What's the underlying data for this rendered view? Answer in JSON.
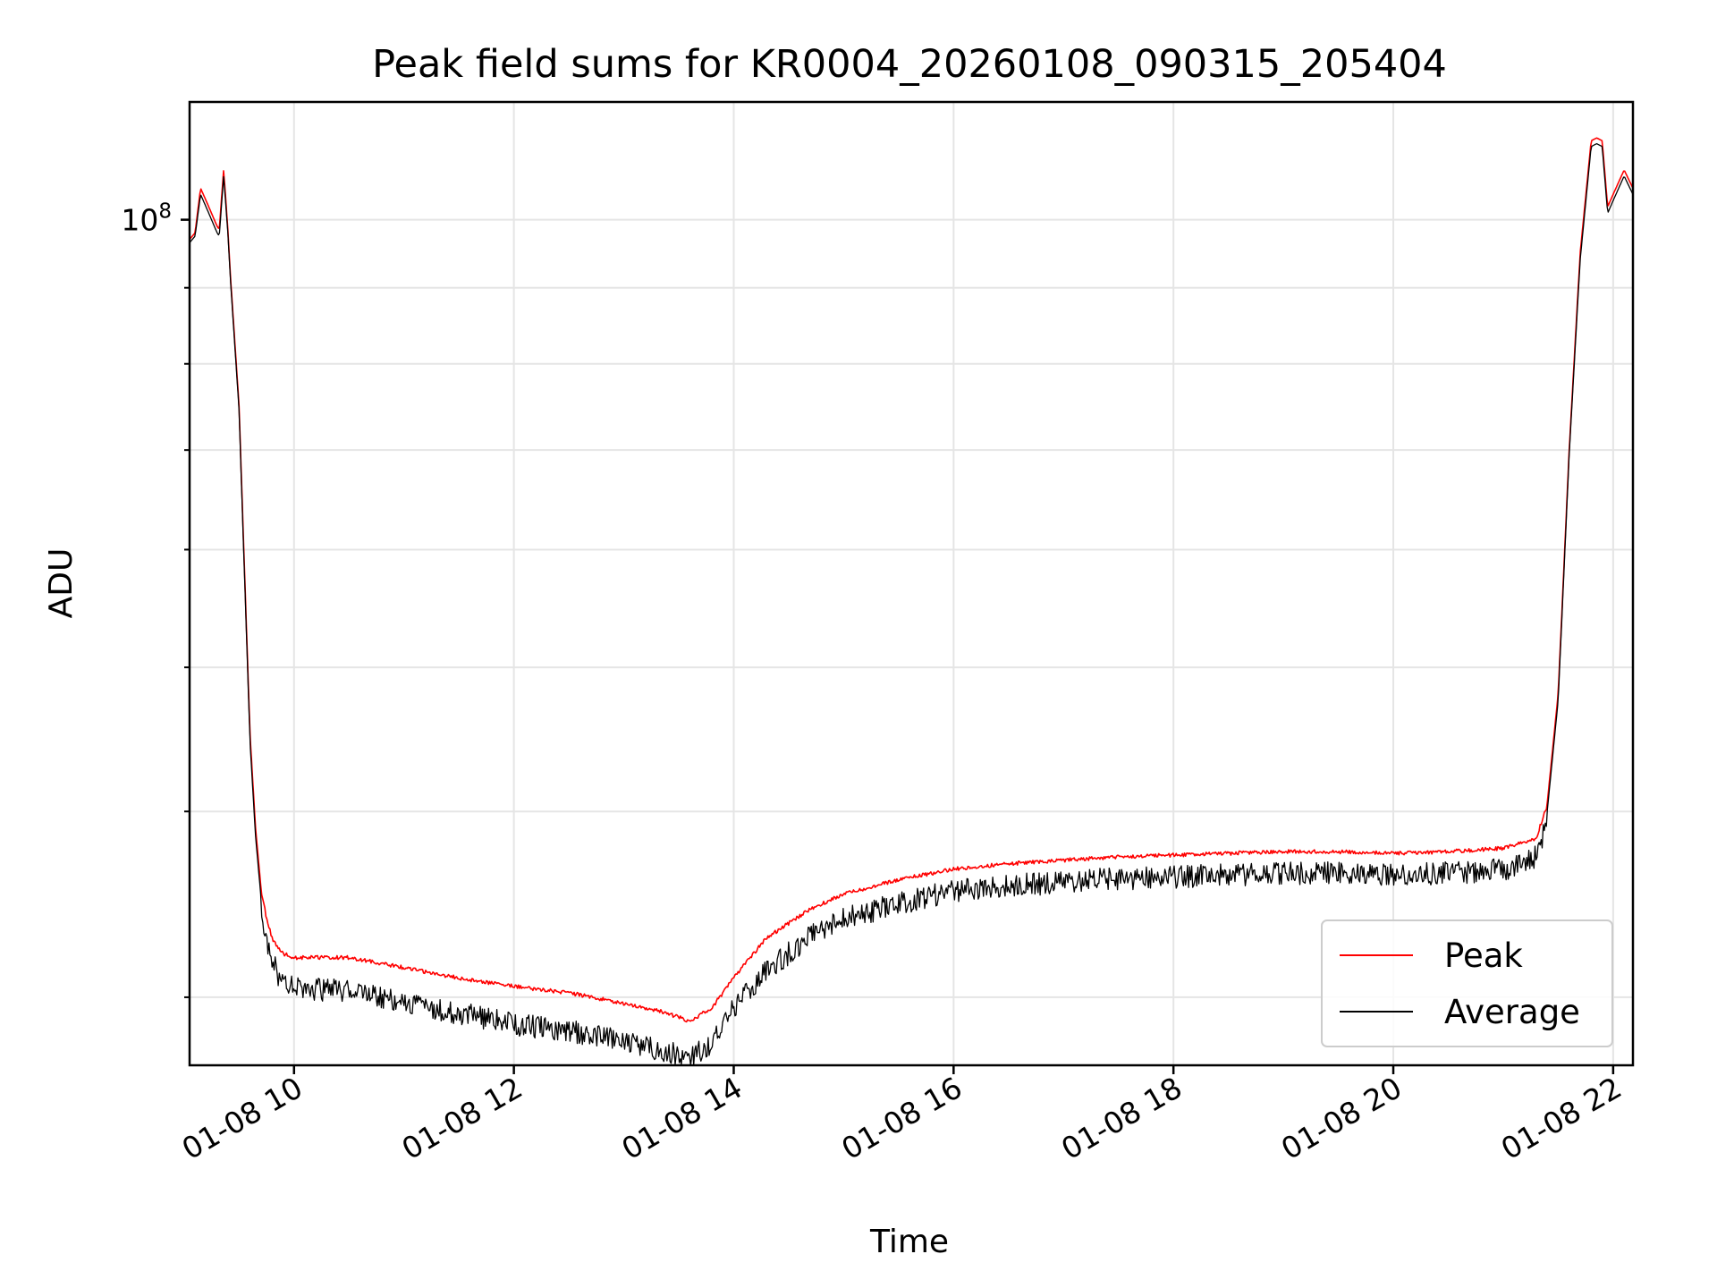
{
  "chart_data": {
    "type": "line",
    "title": "Peak field sums for KR0004_20260108_090315_205404",
    "xlabel": "Time",
    "ylabel": "ADU",
    "yscale": "log",
    "ylim": [
      27000000,
      120000000
    ],
    "xlim": [
      9.05,
      22.18
    ],
    "x_ticks": [
      {
        "value": 10,
        "label": "01-08 10"
      },
      {
        "value": 12,
        "label": "01-08 12"
      },
      {
        "value": 14,
        "label": "01-08 14"
      },
      {
        "value": 16,
        "label": "01-08 16"
      },
      {
        "value": 18,
        "label": "01-08 18"
      },
      {
        "value": 20,
        "label": "01-08 20"
      },
      {
        "value": 22,
        "label": "01-08 22"
      }
    ],
    "y_major_ticks": [
      {
        "value": 100000000,
        "base": "10",
        "exponent": "8"
      }
    ],
    "y_minor_ticks": [
      30000000,
      40000000,
      50000000,
      60000000,
      70000000,
      80000000,
      90000000
    ],
    "grid": true,
    "legend_position": "lower-right",
    "series": [
      {
        "name": "Peak",
        "color": "#ff0000",
        "x": [
          9.05,
          9.1,
          9.15,
          9.2,
          9.3,
          9.32,
          9.36,
          9.4,
          9.42,
          9.5,
          9.55,
          9.6,
          9.65,
          9.7,
          9.75,
          9.8,
          9.85,
          9.9,
          10.0,
          10.5,
          11.0,
          11.5,
          12.0,
          12.5,
          13.0,
          13.3,
          13.6,
          13.8,
          14.0,
          14.3,
          14.7,
          15.0,
          15.5,
          16.0,
          16.5,
          17.0,
          17.5,
          18.0,
          18.5,
          19.0,
          19.5,
          20.0,
          20.5,
          21.0,
          21.3,
          21.4,
          21.5,
          21.6,
          21.7,
          21.8,
          21.85,
          21.9,
          21.95,
          22.0,
          22.05,
          22.1,
          22.18
        ],
        "y": [
          97000000,
          98000000,
          105000000,
          103000000,
          99000000,
          98500000,
          108000000,
          98000000,
          92000000,
          75000000,
          58000000,
          45000000,
          39000000,
          35500000,
          34000000,
          33000000,
          32500000,
          32200000,
          32000000,
          32000000,
          31500000,
          31000000,
          30600000,
          30300000,
          29800000,
          29500000,
          29000000,
          29600000,
          31000000,
          33000000,
          34500000,
          35300000,
          36100000,
          36700000,
          37000000,
          37200000,
          37400000,
          37500000,
          37600000,
          37700000,
          37700000,
          37600000,
          37700000,
          37900000,
          38500000,
          40500000,
          48000000,
          70000000,
          95000000,
          113000000,
          113500000,
          113000000,
          102000000,
          104000000,
          106000000,
          108000000,
          105000000
        ]
      },
      {
        "name": "Average",
        "color": "#000000",
        "x": [
          9.05,
          9.1,
          9.15,
          9.2,
          9.3,
          9.32,
          9.36,
          9.4,
          9.42,
          9.5,
          9.55,
          9.6,
          9.65,
          9.7,
          9.75,
          9.8,
          9.85,
          9.9,
          10.0,
          10.5,
          11.0,
          11.5,
          12.0,
          12.5,
          13.0,
          13.3,
          13.6,
          13.8,
          14.0,
          14.3,
          14.7,
          15.0,
          15.5,
          16.0,
          16.5,
          17.0,
          17.5,
          18.0,
          18.5,
          19.0,
          19.5,
          20.0,
          20.5,
          21.0,
          21.3,
          21.4,
          21.5,
          21.6,
          21.7,
          21.8,
          21.85,
          21.9,
          21.95,
          22.0,
          22.05,
          22.1,
          22.18
        ],
        "y": [
          96500000,
          97500000,
          104000000,
          102000000,
          98000000,
          97500000,
          107000000,
          97500000,
          91500000,
          74500000,
          57500000,
          44500000,
          38500000,
          35000000,
          33300000,
          32300000,
          31700000,
          31300000,
          31000000,
          30800000,
          30300000,
          29800000,
          29300000,
          29000000,
          28500000,
          28200000,
          27800000,
          28400000,
          30000000,
          31800000,
          33600000,
          34500000,
          35300000,
          36000000,
          36300000,
          36500000,
          36700000,
          36800000,
          36900000,
          37000000,
          37000000,
          36900000,
          37000000,
          37200000,
          38000000,
          40000000,
          47500000,
          69500000,
          94000000,
          112000000,
          112500000,
          112000000,
          101000000,
          103000000,
          105000000,
          107000000,
          104000000
        ]
      }
    ]
  }
}
